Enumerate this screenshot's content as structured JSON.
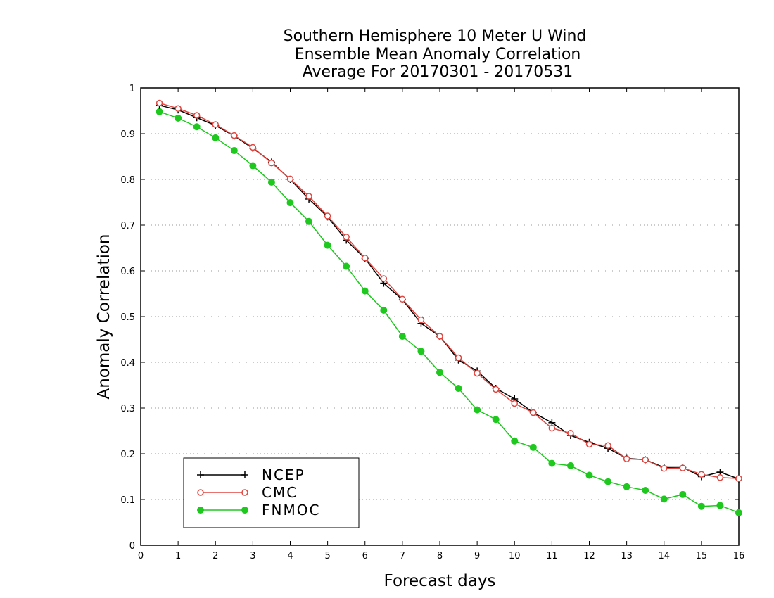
{
  "chart_data": {
    "type": "line",
    "title_lines": [
      "Southern Hemisphere 10 Meter U Wind",
      "Ensemble Mean Anomaly Correlation",
      "Average For 20170301 - 20170531"
    ],
    "xlabel": "Forecast days",
    "ylabel": "Anomaly Correlation",
    "xlim": [
      0,
      16
    ],
    "ylim": [
      0,
      1
    ],
    "x_ticks": [
      "0",
      "1",
      "2",
      "3",
      "4",
      "5",
      "6",
      "7",
      "8",
      "9",
      "10",
      "11",
      "12",
      "13",
      "14",
      "15",
      "16"
    ],
    "y_ticks": [
      "0",
      "0.1",
      "0.2",
      "0.3",
      "0.4",
      "0.5",
      "0.6",
      "0.7",
      "0.8",
      "0.9",
      "1"
    ],
    "grid": true,
    "legend_position": "bottom-left",
    "x": [
      0.5,
      1,
      1.5,
      2,
      2.5,
      3,
      3.5,
      4,
      4.5,
      5,
      5.5,
      6,
      6.5,
      7,
      7.5,
      8,
      8.5,
      9,
      9.5,
      10,
      10.5,
      11,
      11.5,
      12,
      12.5,
      13,
      13.5,
      14,
      14.5,
      15,
      15.5,
      16
    ],
    "series": [
      {
        "name": "NCEP",
        "color": "#000000",
        "marker": "plus",
        "values": [
          0.962,
          0.952,
          0.935,
          0.918,
          0.895,
          0.868,
          0.838,
          0.8,
          0.757,
          0.718,
          0.667,
          0.627,
          0.573,
          0.537,
          0.485,
          0.457,
          0.405,
          0.381,
          0.343,
          0.32,
          0.29,
          0.268,
          0.24,
          0.225,
          0.212,
          0.19,
          0.187,
          0.17,
          0.17,
          0.15,
          0.16,
          0.145
        ]
      },
      {
        "name": "CMC",
        "color": "#e0453f",
        "marker": "open-circle",
        "values": [
          0.967,
          0.955,
          0.94,
          0.92,
          0.896,
          0.87,
          0.836,
          0.801,
          0.763,
          0.72,
          0.674,
          0.628,
          0.583,
          0.538,
          0.493,
          0.457,
          0.41,
          0.376,
          0.341,
          0.31,
          0.29,
          0.256,
          0.245,
          0.221,
          0.218,
          0.189,
          0.187,
          0.168,
          0.169,
          0.155,
          0.148,
          0.146
        ]
      },
      {
        "name": "FNMOC",
        "color": "#1ec81e",
        "marker": "filled-circle",
        "values": [
          0.948,
          0.934,
          0.915,
          0.891,
          0.863,
          0.83,
          0.794,
          0.749,
          0.708,
          0.656,
          0.61,
          0.556,
          0.514,
          0.457,
          0.424,
          0.378,
          0.343,
          0.296,
          0.275,
          0.228,
          0.214,
          0.179,
          0.174,
          0.153,
          0.139,
          0.128,
          0.12,
          0.101,
          0.111,
          0.085,
          0.087,
          0.071
        ]
      }
    ]
  }
}
